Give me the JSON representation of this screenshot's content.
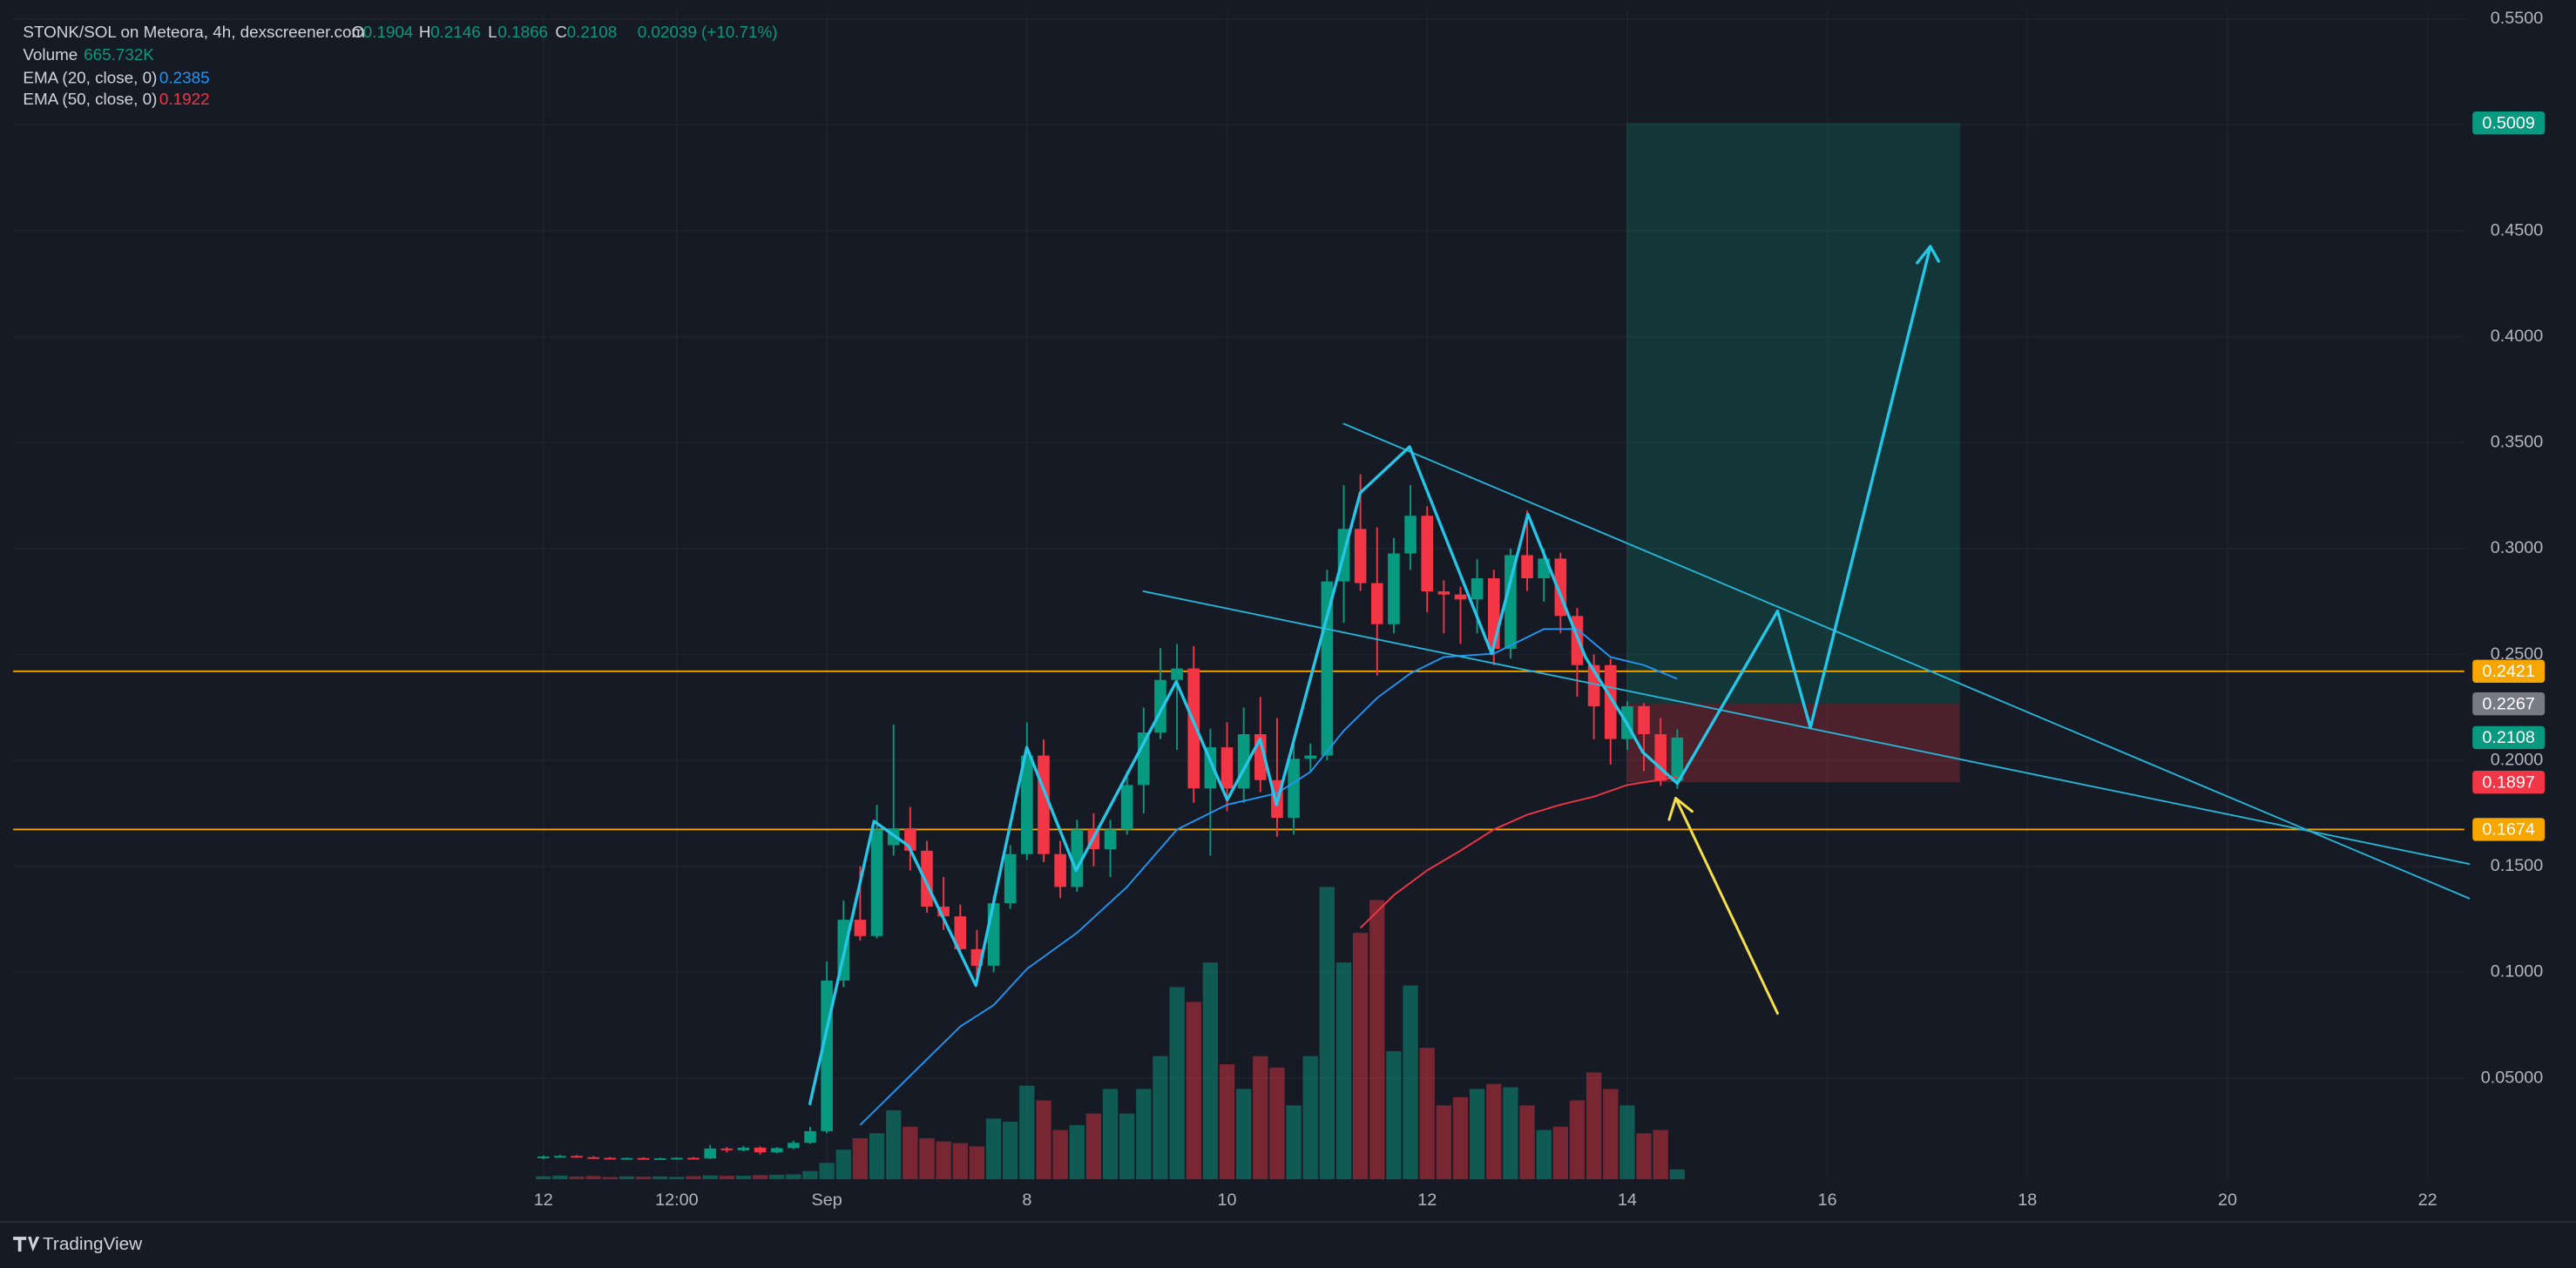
{
  "chart_data": {
    "type": "candlestick",
    "xlim": [
      -31.8,
      115.2
    ],
    "ylim": [
      0.0023,
      0.5535
    ],
    "xticks": [
      {
        "value": 0,
        "label": "12"
      },
      {
        "value": 8,
        "label": "12:00"
      },
      {
        "value": 17,
        "label": "Sep"
      },
      {
        "value": 29,
        "label": "8"
      },
      {
        "value": 41,
        "label": "10"
      },
      {
        "value": 53,
        "label": "12"
      },
      {
        "value": 65,
        "label": "14"
      },
      {
        "value": 77,
        "label": "16"
      },
      {
        "value": 89,
        "label": "18"
      },
      {
        "value": 101,
        "label": "20"
      },
      {
        "value": 113,
        "label": "22"
      }
    ],
    "yticks": [
      {
        "value": 0.05,
        "label": "0.05000"
      },
      {
        "value": 0.1,
        "label": "0.1000"
      },
      {
        "value": 0.15,
        "label": "0.1500"
      },
      {
        "value": 0.2,
        "label": "0.2000"
      },
      {
        "value": 0.25,
        "label": "0.2500"
      },
      {
        "value": 0.3,
        "label": "0.3000"
      },
      {
        "value": 0.35,
        "label": "0.3500"
      },
      {
        "value": 0.4,
        "label": "0.4000"
      },
      {
        "value": 0.45,
        "label": "0.4500"
      },
      {
        "value": 0.5,
        "label": "0.5000"
      },
      {
        "value": 0.55,
        "label": "0.5500"
      }
    ],
    "grid": true,
    "up_color": "#089981",
    "down_color": "#f23645",
    "candles": {
      "open": [
        0.0125,
        0.013,
        0.0133,
        0.0127,
        0.0124,
        0.0121,
        0.0123,
        0.012,
        0.0122,
        0.0124,
        0.0121,
        0.0168,
        0.016,
        0.0172,
        0.015,
        0.017,
        0.0195,
        0.025,
        0.0961,
        0.1248,
        0.1171,
        0.16,
        0.168,
        0.1574,
        0.131,
        0.1264,
        0.1109,
        0.1031,
        0.1326,
        0.1558,
        0.2023,
        0.1558,
        0.1403,
        0.1674,
        0.1581,
        0.1674,
        0.1884,
        0.2132,
        0.238,
        0.2434,
        0.1868,
        0.2062,
        0.1868,
        0.2124,
        0.1907,
        0.1729,
        0.2008,
        0.2023,
        0.2845,
        0.3093,
        0.2837,
        0.2643,
        0.2977,
        0.3155,
        0.2798,
        0.2783,
        0.276,
        0.286,
        0.2527,
        0.2969,
        0.286,
        0.2953,
        0.2682,
        0.245,
        0.245,
        0.2101,
        0.2256,
        0.2124,
        0.1904
      ],
      "high": [
        0.0135,
        0.0138,
        0.0136,
        0.0132,
        0.0128,
        0.0126,
        0.0127,
        0.0125,
        0.0126,
        0.0128,
        0.0185,
        0.0175,
        0.018,
        0.0178,
        0.0175,
        0.0205,
        0.027,
        0.105,
        0.134,
        0.15,
        0.179,
        0.217,
        0.178,
        0.162,
        0.145,
        0.132,
        0.12,
        0.136,
        0.16,
        0.218,
        0.21,
        0.162,
        0.172,
        0.175,
        0.172,
        0.195,
        0.225,
        0.253,
        0.255,
        0.254,
        0.215,
        0.218,
        0.225,
        0.23,
        0.22,
        0.208,
        0.208,
        0.29,
        0.33,
        0.335,
        0.31,
        0.305,
        0.33,
        0.32,
        0.285,
        0.282,
        0.295,
        0.29,
        0.3,
        0.318,
        0.3,
        0.298,
        0.272,
        0.25,
        0.248,
        0.228,
        0.227,
        0.22,
        0.2146
      ],
      "low": [
        0.0118,
        0.0125,
        0.0124,
        0.012,
        0.0118,
        0.0117,
        0.0119,
        0.0116,
        0.0118,
        0.0119,
        0.0119,
        0.015,
        0.0155,
        0.014,
        0.0145,
        0.0165,
        0.019,
        0.024,
        0.093,
        0.115,
        0.116,
        0.155,
        0.148,
        0.128,
        0.12,
        0.11,
        0.098,
        0.1,
        0.13,
        0.153,
        0.152,
        0.135,
        0.138,
        0.15,
        0.145,
        0.165,
        0.175,
        0.21,
        0.205,
        0.18,
        0.155,
        0.176,
        0.18,
        0.185,
        0.164,
        0.165,
        0.195,
        0.2,
        0.265,
        0.28,
        0.24,
        0.26,
        0.29,
        0.27,
        0.26,
        0.255,
        0.26,
        0.245,
        0.248,
        0.28,
        0.275,
        0.26,
        0.23,
        0.21,
        0.198,
        0.205,
        0.195,
        0.188,
        0.1866
      ],
      "close": [
        0.013,
        0.0133,
        0.0127,
        0.0124,
        0.0121,
        0.0123,
        0.012,
        0.0122,
        0.0124,
        0.0121,
        0.0168,
        0.016,
        0.0172,
        0.015,
        0.017,
        0.0195,
        0.025,
        0.0961,
        0.1248,
        0.1171,
        0.1674,
        0.168,
        0.1574,
        0.131,
        0.1264,
        0.1109,
        0.1031,
        0.1326,
        0.1558,
        0.2023,
        0.1558,
        0.1403,
        0.1674,
        0.1581,
        0.1674,
        0.1884,
        0.2132,
        0.238,
        0.2434,
        0.1868,
        0.2062,
        0.1868,
        0.2124,
        0.1907,
        0.1729,
        0.2008,
        0.2023,
        0.2845,
        0.3093,
        0.2837,
        0.2643,
        0.2977,
        0.3155,
        0.2798,
        0.2783,
        0.276,
        0.286,
        0.2527,
        0.2969,
        0.286,
        0.2953,
        0.2682,
        0.245,
        0.2256,
        0.2101,
        0.2256,
        0.2124,
        0.1904,
        0.2108
      ]
    },
    "volume": {
      "up_color": "rgba(8,153,129,0.5)",
      "down_color": "rgba(242,54,69,0.45)",
      "values": [
        200000,
        250000,
        180000,
        220000,
        150000,
        200000,
        170000,
        190000,
        160000,
        210000,
        260000,
        230000,
        240000,
        280000,
        300000,
        330000,
        555000,
        1110000,
        1998000,
        2775000,
        3108000,
        4662000,
        3552000,
        2775000,
        2553000,
        2442000,
        2220000,
        4107000,
        3885000,
        6327000,
        5328000,
        3330000,
        3663000,
        4440000,
        6105000,
        4440000,
        6105000,
        8325000,
        12987000,
        11988000,
        14652000,
        7770000,
        6105000,
        8325000,
        7548000,
        4995000,
        8325000,
        19758000,
        14652000,
        16650000,
        18870000,
        8658000,
        13098000,
        8880000,
        4995000,
        5550000,
        6105000,
        6438000,
        6216000,
        4995000,
        3330000,
        3552000,
        5328000,
        7215000,
        6105000,
        4995000,
        3108000,
        3330000,
        665732
      ]
    },
    "series": [
      {
        "name": "EMA (20, close, 0)",
        "color": "#2196f3",
        "last": 0.2385,
        "x": [
          19,
          22,
          25,
          27,
          29,
          32,
          35,
          38,
          41,
          44,
          46,
          48,
          50,
          52,
          54,
          57,
          60,
          62,
          64,
          66,
          68
        ],
        "values": [
          0.0279,
          0.0512,
          0.0744,
          0.0845,
          0.1016,
          0.1186,
          0.1403,
          0.1674,
          0.1791,
          0.1845,
          0.1946,
          0.214,
          0.2295,
          0.2411,
          0.2488,
          0.2504,
          0.262,
          0.262,
          0.2488,
          0.245,
          0.2385
        ]
      },
      {
        "name": "EMA (50, close, 0)",
        "color": "#f23645",
        "last": 0.1922,
        "x": [
          49,
          51,
          53,
          55,
          57,
          59,
          61,
          63,
          65,
          68
        ],
        "values": [
          0.1209,
          0.1364,
          0.1481,
          0.1574,
          0.1674,
          0.1744,
          0.1791,
          0.1829,
          0.1884,
          0.1922
        ]
      }
    ],
    "price_labels": [
      {
        "value": 0.5009,
        "color": "#089981"
      },
      {
        "value": 0.2421,
        "color": "#f7a600",
        "line": true
      },
      {
        "value": 0.2267,
        "color": "#787b86"
      },
      {
        "value": 0.2108,
        "color": "#089981"
      },
      {
        "value": 0.1897,
        "color": "#f23645"
      },
      {
        "value": 0.1674,
        "color": "#f7a600",
        "line": true
      }
    ]
  },
  "legend": {
    "title": "STONK/SOL on Meteora, 4h, dexscreener.com",
    "fields": [
      {
        "label": "O",
        "value": 0.1904
      },
      {
        "label": "H",
        "value": 0.2146
      },
      {
        "label": "L",
        "value": 0.1866
      },
      {
        "label": "C",
        "value": 0.2108
      }
    ],
    "change": "0.02039 (+10.71%)",
    "volume_label": "Volume",
    "volume_value": "665.732K"
  },
  "footer": {
    "brand": "TradingView"
  }
}
